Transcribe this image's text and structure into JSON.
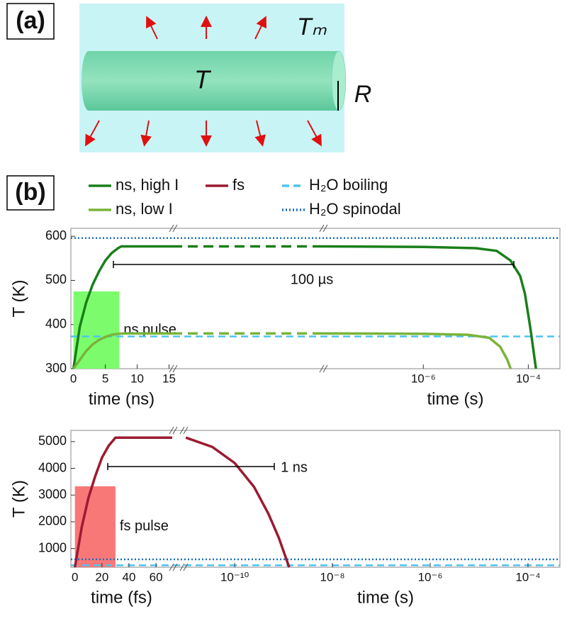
{
  "panel_a": {
    "label": "(a)",
    "medium_temperature": "Tₘ",
    "rod_temperature": "T",
    "radius": "R"
  },
  "panel_b_label": "(b)",
  "chart_data": [
    {
      "type": "line",
      "ylabel": "T (K)",
      "ylim": [
        300,
        618
      ],
      "yticks": [
        300,
        400,
        500,
        600
      ],
      "hlines": [
        {
          "name": "H₂O boiling",
          "value": 373,
          "color": "#4fc3f0",
          "style": "dashed"
        },
        {
          "name": "H₂O spinodal",
          "value": 596,
          "color": "#1a6fbf",
          "style": "dotted"
        }
      ],
      "pulse": {
        "label": "ns pulse",
        "x": [
          0,
          7.2
        ],
        "y": [
          300,
          475
        ],
        "color": "#7cfc6c"
      },
      "span_label": "100 µs",
      "left": {
        "xlabel": "time (ns)",
        "xlim": [
          -0.4,
          15.5
        ],
        "xticks": [
          0,
          5,
          10,
          15
        ],
        "series": [
          {
            "name": "ns, high I",
            "color": "#1a7f1a",
            "x": [
              0,
              1,
              2,
              3,
              4,
              5,
              6,
              7,
              7.5,
              10,
              15.5
            ],
            "values": [
              300,
              395,
              450,
              490,
              520,
              545,
              562,
              573,
              577,
              577,
              577
            ]
          },
          {
            "name": "ns, low I",
            "color": "#7ab33a",
            "x": [
              0,
              1,
              2,
              3,
              4,
              5,
              6,
              7,
              8,
              15.5
            ],
            "values": [
              300,
              320,
              340,
              355,
              365,
              372,
              377,
              379,
              380,
              380
            ]
          }
        ]
      },
      "right": {
        "xlabel": "time (s)",
        "xscale": "log",
        "xlim": [
          1.2e-08,
          0.0004
        ],
        "xticks": [
          {
            "value": 1e-06,
            "label": "10⁻⁶"
          },
          {
            "value": 0.0001,
            "label": "10⁻⁴"
          }
        ],
        "series": [
          {
            "color": "#1a7f1a",
            "x": [
              1.2e-08,
              1e-06,
              1e-05,
              2.5e-05,
              4.6e-05,
              7e-05,
              8.6e-05,
              0.00011,
              0.00014
            ],
            "values": [
              577,
              576,
              573,
              567,
              545,
              510,
              470,
              390,
              300
            ]
          },
          {
            "color": "#7ab33a",
            "x": [
              1.2e-08,
              1e-06,
              7e-06,
              1.8e-05,
              2.9e-05,
              4e-05,
              4.6e-05
            ],
            "values": [
              380,
              379,
              377,
              370,
              350,
              320,
              300
            ]
          }
        ]
      }
    },
    {
      "type": "line",
      "ylabel": "T (K)",
      "ylim": [
        300,
        5420
      ],
      "yticks": [
        1000,
        2000,
        3000,
        4000,
        5000
      ],
      "hlines": [
        {
          "value": 373,
          "color": "#4fc3f0",
          "style": "dashed"
        },
        {
          "value": 596,
          "color": "#1a6fbf",
          "style": "dotted"
        }
      ],
      "pulse": {
        "label": "fs pulse",
        "x": [
          0,
          30
        ],
        "y": [
          300,
          3330
        ],
        "color": "#f87878"
      },
      "span_label": "1 ns",
      "left": {
        "xlabel": "time (fs)",
        "xlim": [
          -3,
          72
        ],
        "xticks": [
          0,
          20,
          40,
          60
        ],
        "series": [
          {
            "name": "fs",
            "color": "#9b1b30",
            "x": [
              0,
              5,
              10,
              15,
              20,
              25,
              30,
              72
            ],
            "values": [
              300,
              1800,
              2900,
              3700,
              4400,
              4850,
              5150,
              5150
            ]
          }
        ]
      },
      "right": {
        "xlabel": "time (s)",
        "xscale": "log",
        "xlim": [
          8.7e-12,
          0.00045
        ],
        "xticks": [
          {
            "value": 1e-10,
            "label": "10⁻¹⁰"
          },
          {
            "value": 1e-08,
            "label": "10⁻⁸"
          },
          {
            "value": 1e-06,
            "label": "10⁻⁶"
          },
          {
            "value": 0.0001,
            "label": "10⁻⁴"
          }
        ],
        "series": [
          {
            "color": "#9b1b30",
            "x": [
              1e-11,
              3.5e-11,
              1e-10,
              2.5e-10,
              4.9e-10,
              8e-10,
              1.3e-09
            ],
            "values": [
              5150,
              4800,
              4200,
              3300,
              2300,
              1400,
              300
            ]
          }
        ]
      }
    }
  ]
}
